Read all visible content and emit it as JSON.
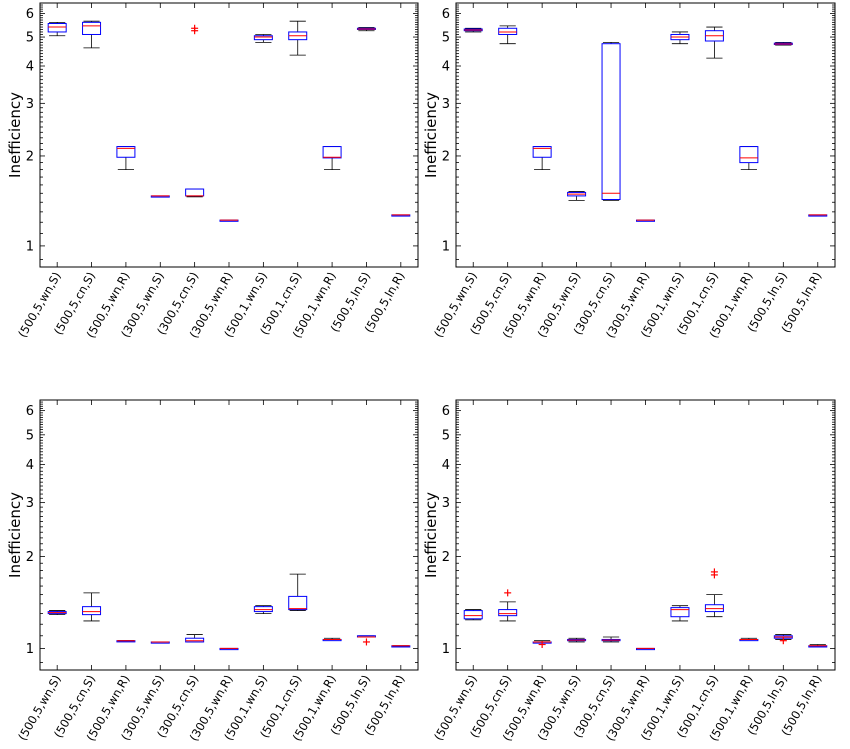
{
  "figure": {
    "layout": "2x2 grid of box plots",
    "colors": {
      "box": "#0000ff",
      "median": "#ff0000",
      "whisker": "#000000",
      "outlier": "#ff0000",
      "frame": "#000000",
      "background": "#ffffff"
    }
  },
  "chart_data": [
    {
      "type": "box",
      "panel": "top-left",
      "ylabel": "Inefficiency",
      "yscale": "log",
      "ylim": [
        0.85,
        6.5
      ],
      "yticks": [
        "1",
        "2",
        "3",
        "4",
        "5",
        "6"
      ],
      "categories": [
        "(500,5,wn,S)",
        "(500,5,cn,S)",
        "(500,5,wn,R)",
        "(300,5,wn,S)",
        "(300,5,cn,S)",
        "(300,5,wn,R)",
        "(500,1,wn,S)",
        "(500,1,cn,S)",
        "(500,1,wn,R)",
        "(500,5,ln,S)",
        "(500,5,ln,R)"
      ],
      "boxes": [
        {
          "min": 5.05,
          "q1": 5.2,
          "median": 5.4,
          "q3": 5.55,
          "max": 5.6,
          "outliers": []
        },
        {
          "min": 4.6,
          "q1": 5.1,
          "median": 5.45,
          "q3": 5.6,
          "max": 5.65,
          "outliers": []
        },
        {
          "min": 1.8,
          "q1": 1.98,
          "median": 2.12,
          "q3": 2.15,
          "max": 2.15,
          "outliers": []
        },
        {
          "min": 1.47,
          "q1": 1.47,
          "median": 1.47,
          "q3": 1.47,
          "max": 1.47,
          "outliers": []
        },
        {
          "min": 1.46,
          "q1": 1.47,
          "median": 1.47,
          "q3": 1.55,
          "max": 1.55,
          "outliers": [
            5.25,
            5.35
          ]
        },
        {
          "min": 1.22,
          "q1": 1.22,
          "median": 1.22,
          "q3": 1.22,
          "max": 1.22,
          "outliers": []
        },
        {
          "min": 4.8,
          "q1": 4.9,
          "median": 5.0,
          "q3": 5.05,
          "max": 5.1,
          "outliers": []
        },
        {
          "min": 4.35,
          "q1": 4.9,
          "median": 5.05,
          "q3": 5.2,
          "max": 5.65,
          "outliers": []
        },
        {
          "min": 1.8,
          "q1": 1.97,
          "median": 1.98,
          "q3": 2.15,
          "max": 2.15,
          "outliers": []
        },
        {
          "min": 5.25,
          "q1": 5.3,
          "median": 5.32,
          "q3": 5.35,
          "max": 5.38,
          "outliers": []
        },
        {
          "min": 1.27,
          "q1": 1.27,
          "median": 1.27,
          "q3": 1.27,
          "max": 1.27,
          "outliers": []
        }
      ]
    },
    {
      "type": "box",
      "panel": "top-right",
      "ylabel": "Inefficiency",
      "yscale": "log",
      "ylim": [
        0.85,
        6.5
      ],
      "yticks": [
        "1",
        "2",
        "3",
        "4",
        "5",
        "6"
      ],
      "categories": [
        "(500,5,wn,S)",
        "(500,5,cn,S)",
        "(500,5,wn,R)",
        "(300,5,wn,S)",
        "(300,5,cn,S)",
        "(300,5,wn,R)",
        "(500,1,wn,S)",
        "(500,1,cn,S)",
        "(500,1,wn,R)",
        "(500,5,ln,S)",
        "(500,5,ln,R)"
      ],
      "boxes": [
        {
          "min": 5.2,
          "q1": 5.25,
          "median": 5.28,
          "q3": 5.32,
          "max": 5.35,
          "outliers": []
        },
        {
          "min": 4.75,
          "q1": 5.1,
          "median": 5.2,
          "q3": 5.35,
          "max": 5.45,
          "outliers": []
        },
        {
          "min": 1.8,
          "q1": 1.98,
          "median": 2.12,
          "q3": 2.15,
          "max": 2.15,
          "outliers": []
        },
        {
          "min": 1.42,
          "q1": 1.47,
          "median": 1.49,
          "q3": 1.51,
          "max": 1.52,
          "outliers": []
        },
        {
          "min": 1.42,
          "q1": 1.43,
          "median": 1.5,
          "q3": 4.75,
          "max": 4.8,
          "outliers": []
        },
        {
          "min": 1.22,
          "q1": 1.22,
          "median": 1.22,
          "q3": 1.22,
          "max": 1.22,
          "outliers": []
        },
        {
          "min": 4.75,
          "q1": 4.9,
          "median": 5.0,
          "q3": 5.1,
          "max": 5.2,
          "outliers": []
        },
        {
          "min": 4.25,
          "q1": 4.85,
          "median": 5.05,
          "q3": 5.25,
          "max": 5.4,
          "outliers": []
        },
        {
          "min": 1.8,
          "q1": 1.9,
          "median": 1.97,
          "q3": 2.15,
          "max": 2.15,
          "outliers": []
        },
        {
          "min": 4.7,
          "q1": 4.72,
          "median": 4.74,
          "q3": 4.77,
          "max": 4.8,
          "outliers": []
        },
        {
          "min": 1.27,
          "q1": 1.27,
          "median": 1.27,
          "q3": 1.27,
          "max": 1.27,
          "outliers": []
        }
      ]
    },
    {
      "type": "box",
      "panel": "bottom-left",
      "ylabel": "Inefficiency",
      "yscale": "log",
      "ylim": [
        0.85,
        6.5
      ],
      "yticks": [
        "1",
        "2",
        "3",
        "4",
        "5",
        "6"
      ],
      "categories": [
        "(500,5,wn,S)",
        "(500,5,cn,S)",
        "(500,5,wn,R)",
        "(300,5,wn,S)",
        "(300,5,cn,S)",
        "(300,5,wn,R)",
        "(500,1,wn,S)",
        "(500,1,cn,S)",
        "(500,1,wn,R)",
        "(500,5,ln,S)",
        "(500,5,ln,R)"
      ],
      "boxes": [
        {
          "min": 1.29,
          "q1": 1.3,
          "median": 1.31,
          "q3": 1.32,
          "max": 1.33,
          "outliers": []
        },
        {
          "min": 1.23,
          "q1": 1.29,
          "median": 1.32,
          "q3": 1.37,
          "max": 1.52,
          "outliers": []
        },
        {
          "min": 1.06,
          "q1": 1.06,
          "median": 1.06,
          "q3": 1.06,
          "max": 1.06,
          "outliers": []
        },
        {
          "min": 1.05,
          "q1": 1.05,
          "median": 1.05,
          "q3": 1.05,
          "max": 1.05,
          "outliers": []
        },
        {
          "min": 1.05,
          "q1": 1.05,
          "median": 1.06,
          "q3": 1.08,
          "max": 1.11,
          "outliers": []
        },
        {
          "min": 1.0,
          "q1": 1.0,
          "median": 1.0,
          "q3": 1.0,
          "max": 1.0,
          "outliers": []
        },
        {
          "min": 1.3,
          "q1": 1.32,
          "median": 1.34,
          "q3": 1.37,
          "max": 1.38,
          "outliers": []
        },
        {
          "min": 1.33,
          "q1": 1.34,
          "median": 1.35,
          "q3": 1.48,
          "max": 1.75,
          "outliers": []
        },
        {
          "min": 1.07,
          "q1": 1.07,
          "median": 1.07,
          "q3": 1.07,
          "max": 1.08,
          "outliers": []
        },
        {
          "min": 1.09,
          "q1": 1.09,
          "median": 1.09,
          "q3": 1.1,
          "max": 1.1,
          "outliers": [
            1.05
          ]
        },
        {
          "min": 1.02,
          "q1": 1.02,
          "median": 1.02,
          "q3": 1.02,
          "max": 1.02,
          "outliers": []
        }
      ]
    },
    {
      "type": "box",
      "panel": "bottom-right",
      "ylabel": "Inefficiency",
      "yscale": "log",
      "ylim": [
        0.85,
        6.5
      ],
      "yticks": [
        "1",
        "2",
        "3",
        "4",
        "5",
        "6"
      ],
      "categories": [
        "(500,5,wn,S)",
        "(500,5,cn,S)",
        "(500,5,wn,R)",
        "(300,5,wn,S)",
        "(300,5,cn,S)",
        "(300,5,wn,R)",
        "(500,1,wn,S)",
        "(500,1,cn,S)",
        "(500,1,wn,R)",
        "(500,5,ln,S)",
        "(500,5,ln,R)"
      ],
      "boxes": [
        {
          "min": 1.24,
          "q1": 1.25,
          "median": 1.28,
          "q3": 1.33,
          "max": 1.34,
          "outliers": []
        },
        {
          "min": 1.23,
          "q1": 1.28,
          "median": 1.3,
          "q3": 1.34,
          "max": 1.42,
          "outliers": [
            1.52
          ]
        },
        {
          "min": 1.05,
          "q1": 1.05,
          "median": 1.05,
          "q3": 1.05,
          "max": 1.06,
          "outliers": [
            1.03
          ]
        },
        {
          "min": 1.05,
          "q1": 1.06,
          "median": 1.065,
          "q3": 1.07,
          "max": 1.08,
          "outliers": []
        },
        {
          "min": 1.05,
          "q1": 1.06,
          "median": 1.065,
          "q3": 1.07,
          "max": 1.09,
          "outliers": []
        },
        {
          "min": 1.0,
          "q1": 1.0,
          "median": 1.0,
          "q3": 1.0,
          "max": 1.0,
          "outliers": []
        },
        {
          "min": 1.23,
          "q1": 1.27,
          "median": 1.34,
          "q3": 1.36,
          "max": 1.38,
          "outliers": []
        },
        {
          "min": 1.27,
          "q1": 1.32,
          "median": 1.35,
          "q3": 1.39,
          "max": 1.5,
          "outliers": [
            1.74,
            1.78
          ]
        },
        {
          "min": 1.07,
          "q1": 1.07,
          "median": 1.07,
          "q3": 1.07,
          "max": 1.08,
          "outliers": []
        },
        {
          "min": 1.07,
          "q1": 1.08,
          "median": 1.09,
          "q3": 1.1,
          "max": 1.11,
          "outliers": [
            1.06
          ]
        },
        {
          "min": 1.02,
          "q1": 1.02,
          "median": 1.02,
          "q3": 1.02,
          "max": 1.03,
          "outliers": []
        }
      ]
    }
  ]
}
